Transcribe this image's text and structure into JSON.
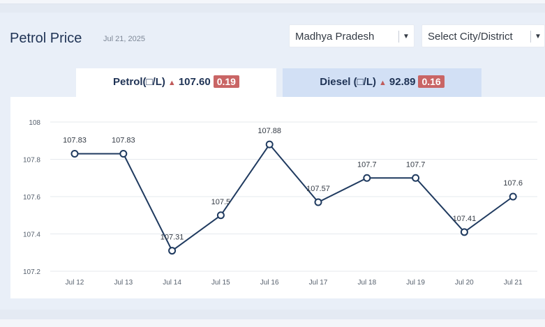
{
  "header": {
    "title": "Petrol Price",
    "date": "Jul 21, 2025"
  },
  "filters": {
    "state": "Madhya Pradesh",
    "city": "Select City/District"
  },
  "tabs": {
    "petrol": {
      "label": "Petrol(□/L)",
      "price": "107.60",
      "change": "0.19"
    },
    "diesel": {
      "label": "Diesel (□/L)",
      "price": "92.89",
      "change": "0.16"
    }
  },
  "icons": {
    "trend": "triangle-up-icon",
    "dropdown": "caret-down-icon"
  },
  "colors": {
    "line": "#1f3a5f",
    "badge": "#c96565",
    "up_arrow": "#c05a5a"
  },
  "chart_data": {
    "type": "line",
    "categories": [
      "Jul 12",
      "Jul 13",
      "Jul 14",
      "Jul 15",
      "Jul 16",
      "Jul 17",
      "Jul 18",
      "Jul 19",
      "Jul 20",
      "Jul 21"
    ],
    "values": [
      107.83,
      107.83,
      107.31,
      107.5,
      107.88,
      107.57,
      107.7,
      107.7,
      107.41,
      107.6
    ],
    "data_labels": [
      "107.83",
      "107.83",
      "107.31",
      "107.5",
      "107.88",
      "107.57",
      "107.7",
      "107.7",
      "107.41",
      "107.6"
    ],
    "y_ticks": [
      "108",
      "107.8",
      "107.6",
      "107.4",
      "107.2"
    ],
    "ylim": [
      107.2,
      108
    ],
    "grid": true
  }
}
